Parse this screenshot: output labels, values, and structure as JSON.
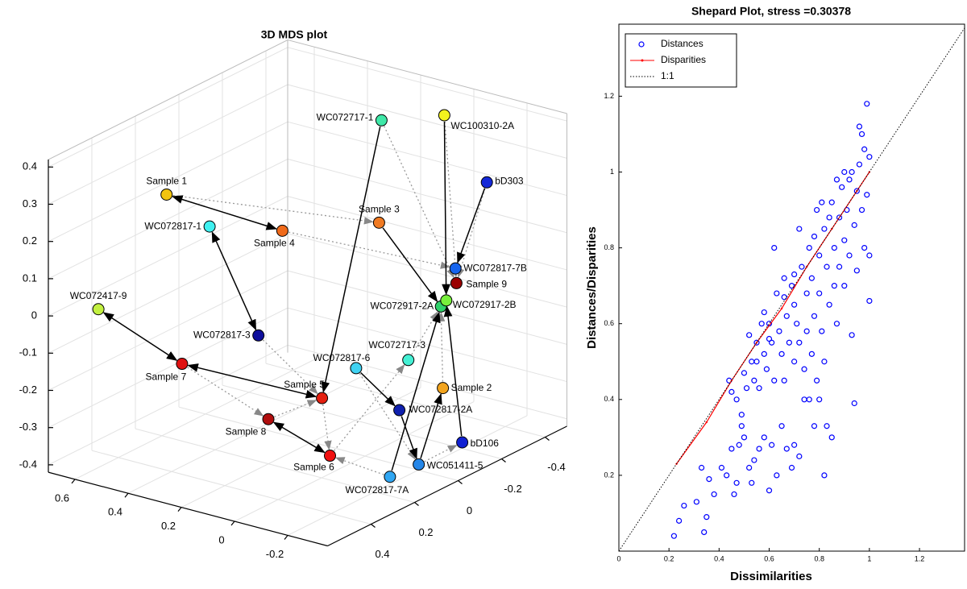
{
  "chart_data": [
    {
      "type": "scatter3d",
      "title": "3D MDS plot",
      "labels": [
        "Sample 1",
        "WC072817-1",
        "Sample 4",
        "Sample 3",
        "WC072717-1",
        "WC100310-2A",
        "bD303",
        "WC072817-7B",
        "Sample 9",
        "WC072917-2A",
        "WC072917-2B",
        "WC072417-9",
        "WC072817-3",
        "Sample 7",
        "WC072717-3",
        "WC072817-6",
        "Sample 5",
        "Sample 2",
        "WC072817-2A",
        "Sample 8",
        "bD106",
        "Sample 6",
        "WC051411-5",
        "WC072817-7A"
      ],
      "x": [
        0.13,
        0.03,
        -0.06,
        -0.15,
        -0.21,
        -0.34,
        -0.34,
        -0.22,
        -0.2,
        -0.08,
        -0.08,
        0.48,
        0.16,
        0.34,
        0.07,
        0.09,
        0.1,
        -0.04,
        0.05,
        0.2,
        -0.08,
        0.21,
        0.01,
        0.13
      ],
      "y": [
        0.64,
        0.56,
        0.36,
        0.07,
        0.11,
        -0.02,
        -0.18,
        -0.16,
        -0.18,
        -0.22,
        -0.24,
        0.61,
        0.27,
        0.41,
        -0.22,
        -0.04,
        0.08,
        -0.26,
        -0.17,
        0.2,
        -0.3,
        -0.04,
        -0.21,
        -0.2
      ],
      "z": [
        0.2,
        0.1,
        0.1,
        0.15,
        0.4,
        0.4,
        0.25,
        0.05,
        0.02,
        0,
        0.02,
        0,
        -0.1,
        -0.15,
        -0.1,
        -0.15,
        -0.25,
        -0.2,
        -0.25,
        -0.3,
        -0.35,
        -0.35,
        -0.4,
        -0.4
      ],
      "colors": [
        "#f2c40f",
        "#3ff0f0",
        "#f06a1a",
        "#f07a22",
        "#3fe8a8",
        "#f2f21e",
        "#1428d8",
        "#1664ee",
        "#9a0000",
        "#2fd06a",
        "#78f03c",
        "#c2f040",
        "#0e0e9c",
        "#e01212",
        "#44f0d4",
        "#40d2f2",
        "#e42010",
        "#f2a41e",
        "#1020ae",
        "#b00e0e",
        "#1020d2",
        "#f01010",
        "#2486e8",
        "#30a6f2"
      ],
      "xlim": [
        -0.5,
        0.6
      ],
      "ylim": [
        -0.35,
        0.7
      ],
      "zlim": [
        -0.42,
        0.42
      ],
      "xticks": [
        -0.4,
        -0.2,
        0,
        0.2,
        0.4
      ],
      "yticks": [
        -0.2,
        0,
        0.2,
        0.4,
        0.6
      ],
      "zticks": [
        -0.4,
        -0.3,
        -0.2,
        -0.1,
        0,
        0.1,
        0.2,
        0.3,
        0.4
      ],
      "grid": true
    },
    {
      "type": "scatter",
      "title": "Shepard Plot, stress =0.30378",
      "xlabel": "Dissimilarities",
      "ylabel": "Distances/Disparities",
      "xlim": [
        0,
        1.38
      ],
      "ylim": [
        0,
        1.39
      ],
      "xticks": [
        0,
        0.2,
        0.4,
        0.6,
        0.8,
        1,
        1.2
      ],
      "yticks": [
        0.2,
        0.4,
        0.6,
        0.8,
        1,
        1.2
      ],
      "legend": "upper left",
      "series": [
        {
          "name": "Distances",
          "color": "#0000ff",
          "marker": "circle",
          "x": [
            0.22,
            0.24,
            0.26,
            0.31,
            0.33,
            0.35,
            0.34,
            0.36,
            0.38,
            0.41,
            0.43,
            0.45,
            0.46,
            0.47,
            0.48,
            0.49,
            0.5,
            0.52,
            0.53,
            0.54,
            0.56,
            0.58,
            0.6,
            0.61,
            0.63,
            0.65,
            0.67,
            0.69,
            0.7,
            0.72,
            0.74,
            0.76,
            0.78,
            0.8,
            0.82,
            0.83,
            0.85,
            0.94,
            0.44,
            0.45,
            0.47,
            0.49,
            0.5,
            0.51,
            0.52,
            0.53,
            0.54,
            0.55,
            0.55,
            0.56,
            0.57,
            0.58,
            0.59,
            0.6,
            0.61,
            0.62,
            0.62,
            0.63,
            0.64,
            0.65,
            0.66,
            0.66,
            0.67,
            0.68,
            0.69,
            0.7,
            0.7,
            0.71,
            0.72,
            0.72,
            0.73,
            0.74,
            0.75,
            0.75,
            0.76,
            0.77,
            0.77,
            0.78,
            0.79,
            0.79,
            0.8,
            0.8,
            0.81,
            0.82,
            0.82,
            0.83,
            0.84,
            0.85,
            0.86,
            0.86,
            0.87,
            0.88,
            0.88,
            0.89,
            0.9,
            0.9,
            0.91,
            0.92,
            0.93,
            0.93,
            0.94,
            0.95,
            0.95,
            0.96,
            0.97,
            0.97,
            0.98,
            0.98,
            0.99,
            0.99,
            1,
            1,
            1,
            0.96,
            0.92,
            0.9,
            0.87,
            0.84,
            0.81,
            0.78,
            0.7,
            0.66,
            0.6,
            0.58
          ],
          "values": [
            0.04,
            0.08,
            0.12,
            0.13,
            0.22,
            0.09,
            0.05,
            0.19,
            0.15,
            0.22,
            0.2,
            0.27,
            0.15,
            0.18,
            0.28,
            0.33,
            0.3,
            0.22,
            0.18,
            0.24,
            0.27,
            0.3,
            0.16,
            0.28,
            0.2,
            0.33,
            0.27,
            0.22,
            0.28,
            0.25,
            0.4,
            0.4,
            0.33,
            0.4,
            0.2,
            0.33,
            0.3,
            0.39,
            0.45,
            0.42,
            0.4,
            0.36,
            0.47,
            0.43,
            0.57,
            0.5,
            0.45,
            0.55,
            0.5,
            0.43,
            0.6,
            0.52,
            0.48,
            0.6,
            0.55,
            0.8,
            0.45,
            0.68,
            0.58,
            0.52,
            0.72,
            0.45,
            0.62,
            0.55,
            0.7,
            0.5,
            0.65,
            0.6,
            0.85,
            0.55,
            0.75,
            0.48,
            0.68,
            0.58,
            0.8,
            0.72,
            0.52,
            0.62,
            0.9,
            0.45,
            0.78,
            0.68,
            0.58,
            0.85,
            0.5,
            0.75,
            0.65,
            0.92,
            0.8,
            0.7,
            0.6,
            0.88,
            0.75,
            0.96,
            0.82,
            0.7,
            0.9,
            0.78,
            1,
            0.57,
            0.86,
            0.95,
            0.74,
            1.02,
            0.9,
            1.1,
            1.06,
            0.8,
            1.18,
            0.94,
            1.04,
            0.78,
            0.66,
            1.12,
            0.98,
            1,
            0.98,
            0.88,
            0.92,
            0.83,
            0.73,
            0.67,
            0.56,
            0.63
          ]
        },
        {
          "name": "Disparities",
          "color": "#ff0000",
          "marker": "line",
          "x": [
            0.23,
            0.35,
            0.45,
            0.55,
            0.65,
            0.75,
            0.85,
            0.95,
            1
          ],
          "values": [
            0.23,
            0.34,
            0.45,
            0.55,
            0.64,
            0.75,
            0.85,
            0.95,
            1
          ]
        },
        {
          "name": "1:1",
          "color": "#000000",
          "marker": "dotted"
        }
      ]
    }
  ]
}
